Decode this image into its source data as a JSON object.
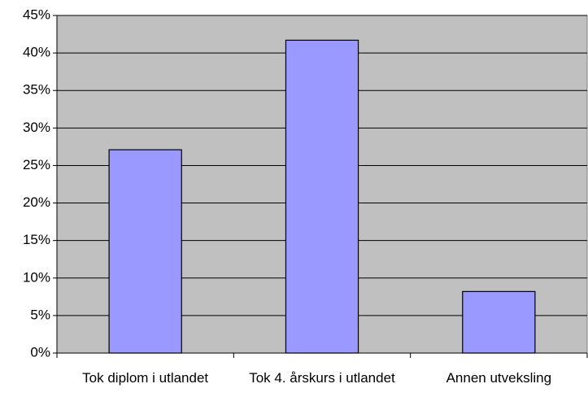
{
  "chart_data": {
    "type": "bar",
    "categories": [
      "Tok diplom i utlandet",
      "Tok 4. årskurs i utlandet",
      "Annen utveksling"
    ],
    "values": [
      27.1,
      41.7,
      8.2
    ],
    "color": "#9999ff",
    "ylim": [
      0,
      45
    ],
    "yticks": [
      {
        "value": 0,
        "label": "0%"
      },
      {
        "value": 5,
        "label": "5%"
      },
      {
        "value": 10,
        "label": "10%"
      },
      {
        "value": 15,
        "label": "15%"
      },
      {
        "value": 20,
        "label": "20%"
      },
      {
        "value": 25,
        "label": "25%"
      },
      {
        "value": 30,
        "label": "30%"
      },
      {
        "value": 35,
        "label": "35%"
      },
      {
        "value": 40,
        "label": "40%"
      },
      {
        "value": 45,
        "label": "45%"
      }
    ],
    "grid": true
  }
}
